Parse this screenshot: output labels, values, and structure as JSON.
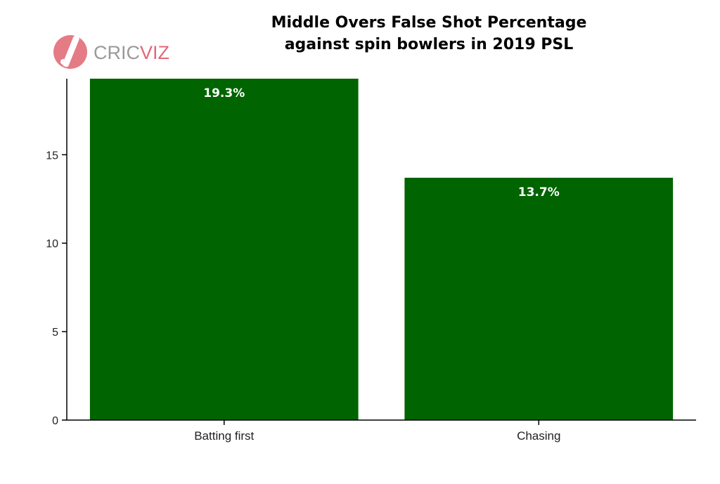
{
  "logo": {
    "part1": "CRIC",
    "part2": "VIZ",
    "color_part1": "#9a9a9a",
    "color_part2": "#e06a78",
    "icon": "cricket-bat-ball-icon",
    "icon_color": "#e57b85"
  },
  "chart_data": {
    "type": "bar",
    "title": [
      "Middle Overs False Shot Percentage",
      "against spin bowlers in 2019 PSL"
    ],
    "categories": [
      "Batting first",
      "Chasing"
    ],
    "values": [
      19.3,
      13.7
    ],
    "data_labels": [
      "19.3%",
      "13.7%"
    ],
    "xlabel": "",
    "ylabel": "",
    "ylim": [
      0,
      19.3
    ],
    "yticks": [
      0,
      5,
      10,
      15
    ],
    "ytick_labels": [
      "0",
      "5",
      "10",
      "15"
    ],
    "bar_color": "#006400",
    "grid": false,
    "legend": "none"
  }
}
